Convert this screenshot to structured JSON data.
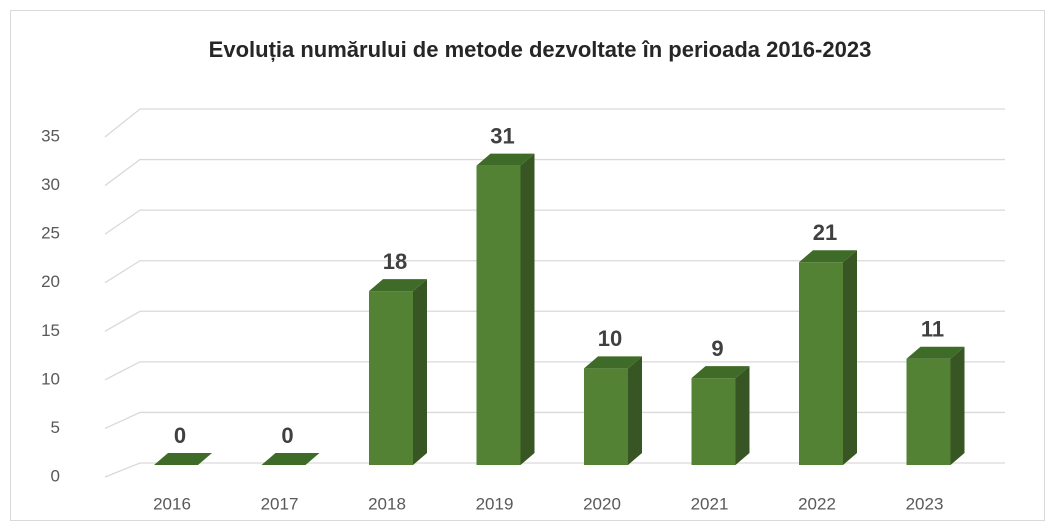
{
  "chart_data": {
    "type": "bar",
    "title": "Evoluția numărului de metode dezvoltate în perioada 2016-2023",
    "categories": [
      "2016",
      "2017",
      "2018",
      "2019",
      "2020",
      "2021",
      "2022",
      "2023"
    ],
    "values": [
      0,
      0,
      18,
      31,
      10,
      9,
      21,
      11
    ],
    "color": "#548235",
    "ylim": [
      0,
      35
    ],
    "yticks": [
      0,
      5,
      10,
      15,
      20,
      25,
      30,
      35
    ],
    "grid": true
  }
}
